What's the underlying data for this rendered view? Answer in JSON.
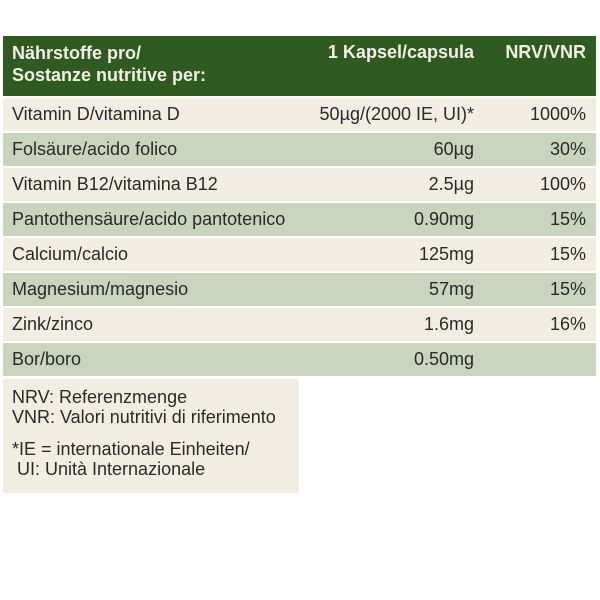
{
  "header": {
    "nutrients_line1": "Nährstoffe pro/",
    "nutrients_line2": "Sostanze nutritive per:",
    "per_capsule": "1 Kapsel/capsula",
    "nrv": "NRV/VNR"
  },
  "rows": [
    {
      "name": "Vitamin D/vitamina D",
      "amount": "50µg/(2000 IE, UI)*",
      "nrv": "1000%"
    },
    {
      "name": "Folsäure/acido folico",
      "amount": "60µg",
      "nrv": "30%"
    },
    {
      "name": "Vitamin B12/vitamina B12",
      "amount": "2.5µg",
      "nrv": "100%"
    },
    {
      "name": "Pantothensäure/acido pantotenico",
      "amount": "0.90mg",
      "nrv": "15%"
    },
    {
      "name": "Calcium/calcio",
      "amount": "125mg",
      "nrv": "15%"
    },
    {
      "name": "Magnesium/magnesio",
      "amount": "57mg",
      "nrv": "15%"
    },
    {
      "name": "Zink/zinco",
      "amount": "1.6mg",
      "nrv": "16%"
    },
    {
      "name": "Bor/boro",
      "amount": "0.50mg",
      "nrv": ""
    }
  ],
  "notes": {
    "nrv_de": "NRV: Referenzmenge",
    "vnr_it": "VNR: Valori nutritivi di riferimento",
    "ie_line1": "*IE = internationale Einheiten/",
    "ie_line2": " UI: Unità Internazionale"
  },
  "colors": {
    "header_bg": "#2f5a22",
    "row_light": "#f1ede2",
    "row_green": "#c9d3bd"
  }
}
